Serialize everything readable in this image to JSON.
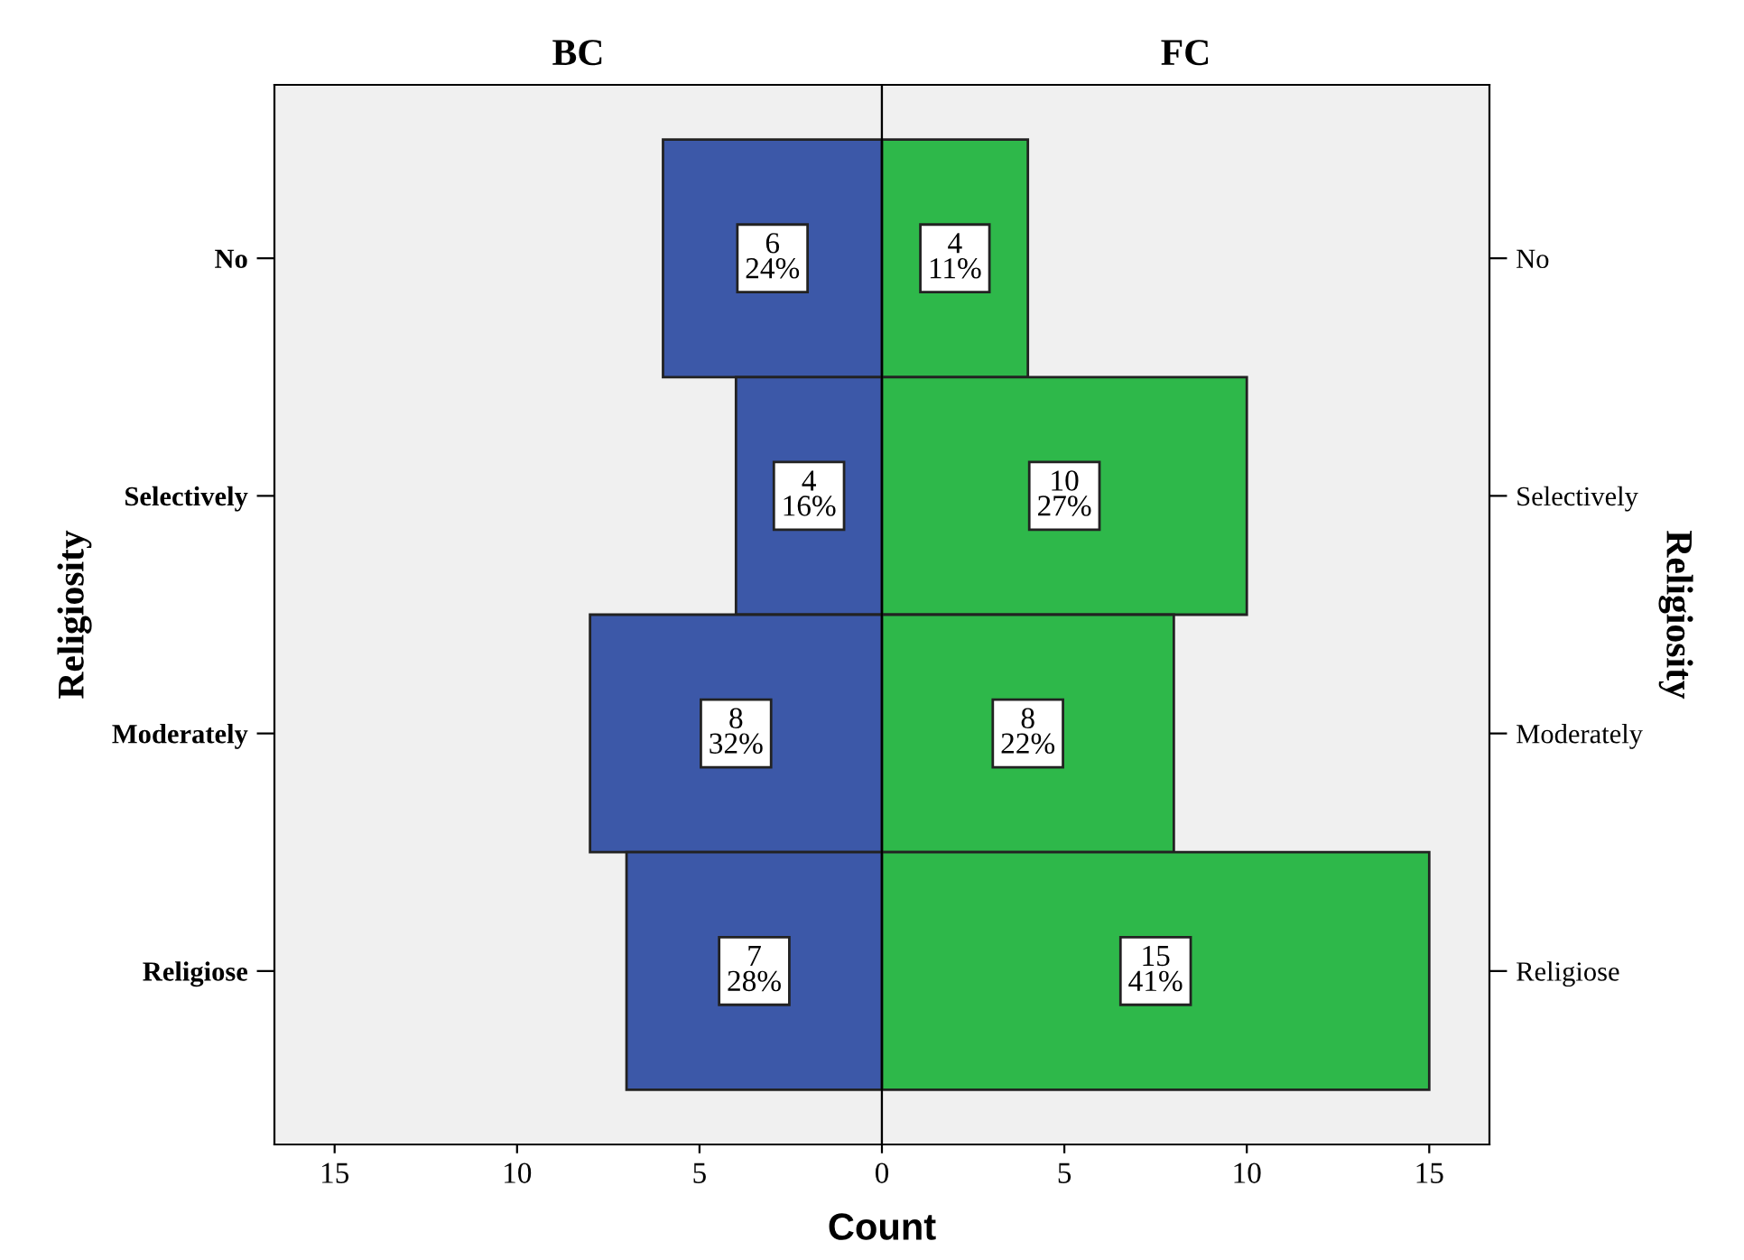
{
  "chart_data": [
    {
      "type": "bar",
      "orientation": "horizontal",
      "title": "BC",
      "xlabel": "Count",
      "ylabel": "Religiosity",
      "categories": [
        "No",
        "Selectively",
        "Moderately",
        "Religiose"
      ],
      "values": [
        6,
        4,
        8,
        7
      ],
      "color": "#3c58a8",
      "value_labels": [
        "6\n24%",
        "4\n16%",
        "8\n32%",
        "7\n28%"
      ],
      "xlim": [
        16.65,
        0
      ],
      "xticks": [
        15,
        10,
        5
      ]
    },
    {
      "type": "bar",
      "orientation": "horizontal",
      "title": "FC",
      "ylabel": "Religiosity",
      "categories": [
        "No",
        "Selectively",
        "Moderately",
        "Religiose"
      ],
      "values": [
        4,
        10,
        8,
        15
      ],
      "color": "#2eb84a",
      "value_labels": [
        "4\n11%",
        "10\n27%",
        "8\n22%",
        "15\n41%"
      ],
      "xlim": [
        0,
        16.65
      ],
      "xticks": [
        0,
        5,
        10,
        15
      ]
    }
  ]
}
